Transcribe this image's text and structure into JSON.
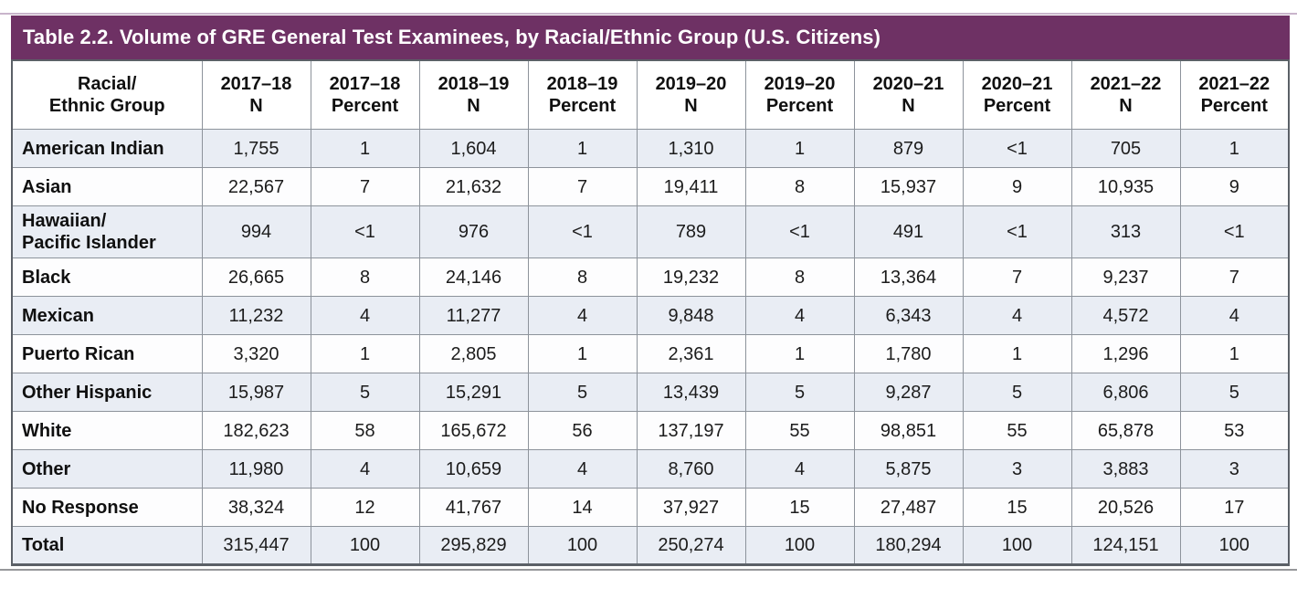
{
  "title_bar": {
    "text": "Table 2.2. Volume of GRE General Test Examinees, by Racial/Ethnic Group (U.S. Citizens)",
    "background": "#6e3164",
    "text_color": "#ffffff"
  },
  "colors": {
    "accent_purple": "#6e3164",
    "top_rule": "#c9b5cb",
    "shaded_row": "#e9edf4",
    "inner_border": "#8d939b",
    "outer_border": "#5b6067",
    "bottom_rule": "#96979a",
    "text": "#101010"
  },
  "table": {
    "columns": [
      "Racial/\nEthnic Group",
      "2017–18\nN",
      "2017–18\nPercent",
      "2018–19\nN",
      "2018–19\nPercent",
      "2019–20\nN",
      "2019–20\nPercent",
      "2020–21\nN",
      "2020–21\nPercent",
      "2021–22\nN",
      "2021–22\nPercent"
    ],
    "rows": [
      {
        "group": "American Indian",
        "shaded": true,
        "values": [
          "1,755",
          "1",
          "1,604",
          "1",
          "1,310",
          "1",
          "879",
          "<1",
          "705",
          "1"
        ]
      },
      {
        "group": "Asian",
        "shaded": false,
        "values": [
          "22,567",
          "7",
          "21,632",
          "7",
          "19,411",
          "8",
          "15,937",
          "9",
          "10,935",
          "9"
        ]
      },
      {
        "group": "Hawaiian/\nPacific Islander",
        "shaded": true,
        "values": [
          "994",
          "<1",
          "976",
          "<1",
          "789",
          "<1",
          "491",
          "<1",
          "313",
          "<1"
        ]
      },
      {
        "group": "Black",
        "shaded": false,
        "values": [
          "26,665",
          "8",
          "24,146",
          "8",
          "19,232",
          "8",
          "13,364",
          "7",
          "9,237",
          "7"
        ]
      },
      {
        "group": "Mexican",
        "shaded": true,
        "values": [
          "11,232",
          "4",
          "11,277",
          "4",
          "9,848",
          "4",
          "6,343",
          "4",
          "4,572",
          "4"
        ]
      },
      {
        "group": "Puerto Rican",
        "shaded": false,
        "values": [
          "3,320",
          "1",
          "2,805",
          "1",
          "2,361",
          "1",
          "1,780",
          "1",
          "1,296",
          "1"
        ]
      },
      {
        "group": "Other Hispanic",
        "shaded": true,
        "values": [
          "15,987",
          "5",
          "15,291",
          "5",
          "13,439",
          "5",
          "9,287",
          "5",
          "6,806",
          "5"
        ]
      },
      {
        "group": "White",
        "shaded": false,
        "values": [
          "182,623",
          "58",
          "165,672",
          "56",
          "137,197",
          "55",
          "98,851",
          "55",
          "65,878",
          "53"
        ]
      },
      {
        "group": "Other",
        "shaded": true,
        "values": [
          "11,980",
          "4",
          "10,659",
          "4",
          "8,760",
          "4",
          "5,875",
          "3",
          "3,883",
          "3"
        ]
      },
      {
        "group": "No Response",
        "shaded": false,
        "values": [
          "38,324",
          "12",
          "41,767",
          "14",
          "37,927",
          "15",
          "27,487",
          "15",
          "20,526",
          "17"
        ]
      },
      {
        "group": "Total",
        "shaded": true,
        "values": [
          "315,447",
          "100",
          "295,829",
          "100",
          "250,274",
          "100",
          "180,294",
          "100",
          "124,151",
          "100"
        ]
      }
    ]
  }
}
